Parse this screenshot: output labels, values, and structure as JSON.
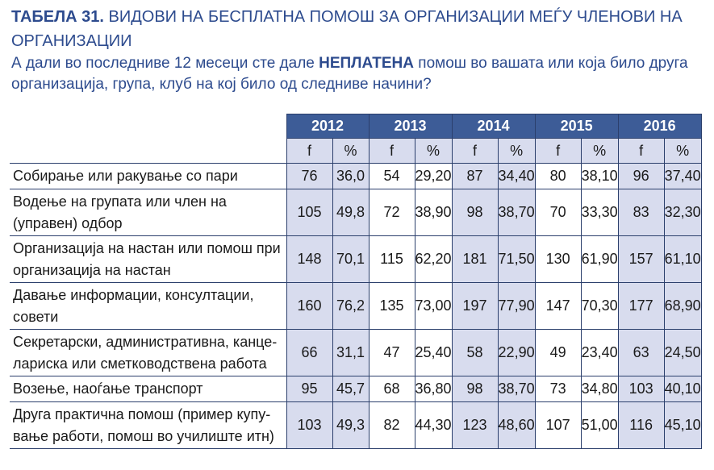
{
  "title_bold": "ТАБЕЛА 31.",
  "title_rest": " ВИДОВИ НА БЕСПЛАТНА ПОМОШ ЗА ОРГАНИЗАЦИИ МЕЃУ ЧЛЕНОВИ НА ОРГАНИЗАЦИИ",
  "subtitle_pre": "А дали во последниве 12 месеци сте дале ",
  "subtitle_bold": "НЕПЛАТЕНА",
  "subtitle_post": " помош во вашата или која било друга организација, група, клуб на кој било од следниве начини?",
  "years": [
    "2012",
    "2013",
    "2014",
    "2015",
    "2016"
  ],
  "sub_headers": [
    "f",
    "%",
    "f",
    "%",
    "f",
    "%",
    "f",
    "%",
    "f",
    "%"
  ],
  "rows": [
    {
      "label": "Собирање или ракување со пари",
      "values": [
        "76",
        "36,0",
        "54",
        "29,20",
        "87",
        "34,40",
        "80",
        "38,10",
        "96",
        "37,40"
      ]
    },
    {
      "label": "Водење на групата или член на (управен) одбор",
      "values": [
        "105",
        "49,8",
        "72",
        "38,90",
        "98",
        "38,70",
        "70",
        "33,30",
        "83",
        "32,30"
      ]
    },
    {
      "label": "Организација на настан или помош при организација на настан",
      "values": [
        "148",
        "70,1",
        "115",
        "62,20",
        "181",
        "71,50",
        "130",
        "61,90",
        "157",
        "61,10"
      ]
    },
    {
      "label": "Давање информации, консултации, совети",
      "values": [
        "160",
        "76,2",
        "135",
        "73,00",
        "197",
        "77,90",
        "147",
        "70,30",
        "177",
        "68,90"
      ]
    },
    {
      "label": "Секретарски, административна, канце­лариска или сметководствена работа",
      "values": [
        "66",
        "31,1",
        "47",
        "25,40",
        "58",
        "22,90",
        "49",
        "23,40",
        "63",
        "24,50"
      ]
    },
    {
      "label": "Возење, наоѓање транспорт",
      "values": [
        "95",
        "45,7",
        "68",
        "36,80",
        "98",
        "38,70",
        "73",
        "34,80",
        "103",
        "40,10"
      ]
    },
    {
      "label": "Друга практична помош (пример купу­вање работи, помош во училиште итн)",
      "values": [
        "103",
        "49,3",
        "82",
        "44,30",
        "123",
        "48,60",
        "107",
        "51,00",
        "116",
        "45,10"
      ]
    }
  ]
}
